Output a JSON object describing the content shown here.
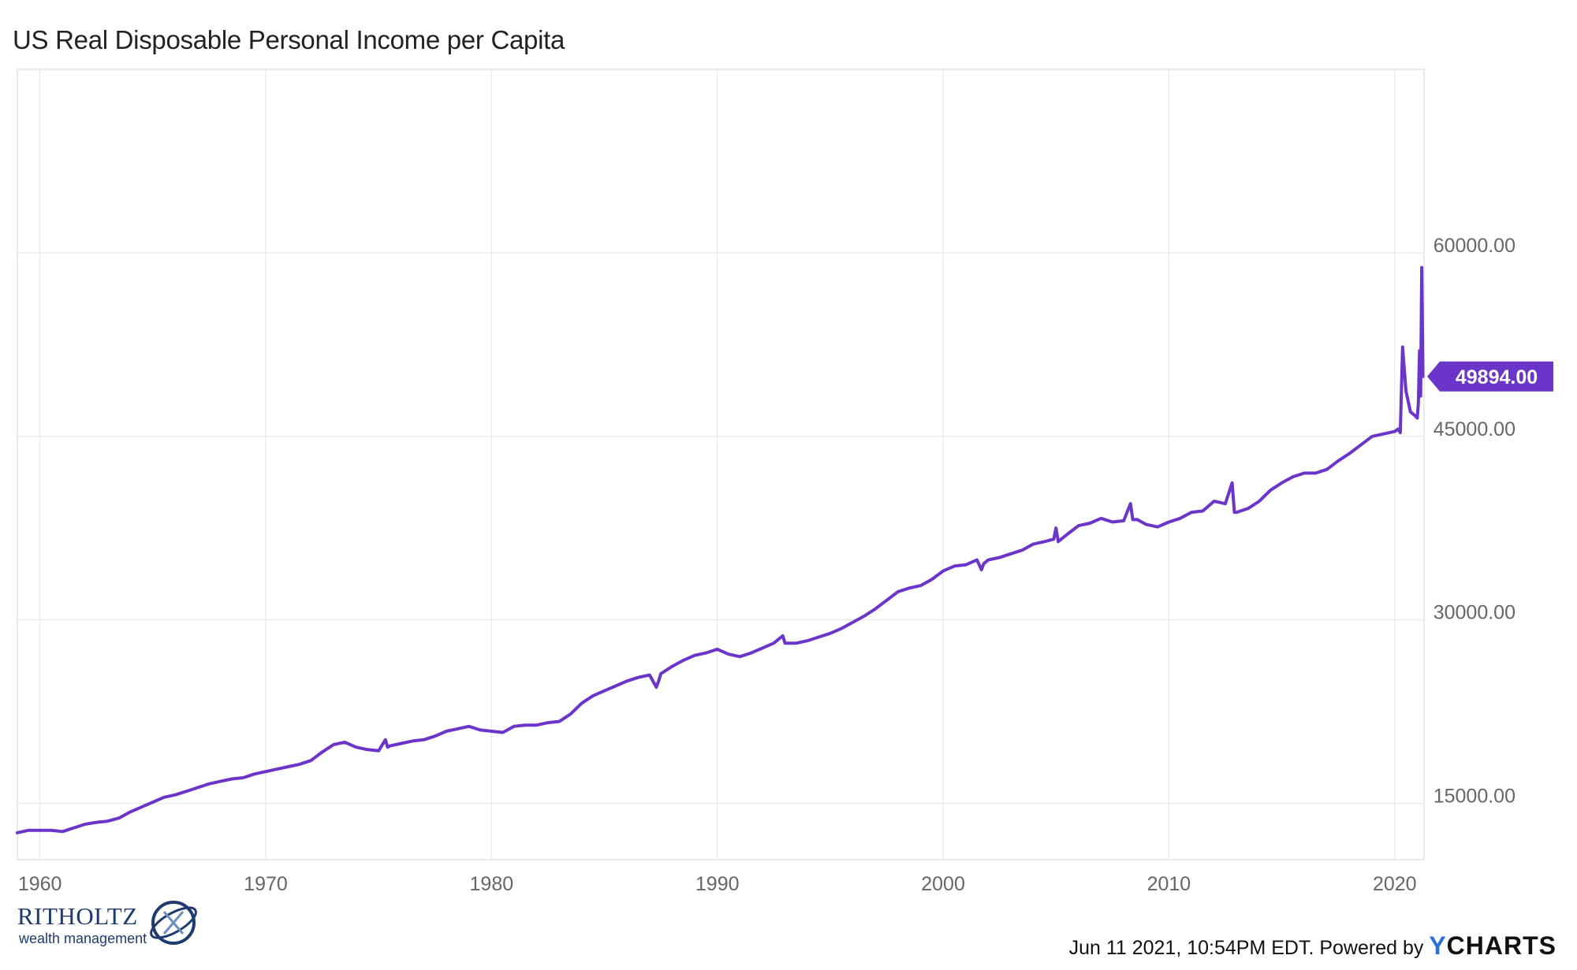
{
  "title": "US Real Disposable Personal Income per Capita",
  "footer": {
    "timestamp_text": "Jun 11 2021, 10:54PM EDT. Powered by ",
    "brand_y": "Y",
    "brand_rest": "CHARTS"
  },
  "logo": {
    "name": "RITHOLTZ",
    "subtitle": "wealth management"
  },
  "colors": {
    "series": "#6b35c9",
    "grid": "#e6e6e6",
    "axis_text": "#666666"
  },
  "chart_data": {
    "type": "line",
    "title": "US Real Disposable Personal Income per Capita",
    "xlabel": "",
    "ylabel": "",
    "xlim": [
      1959.0,
      2021.3
    ],
    "ylim": [
      10400,
      75000
    ],
    "x_ticks": [
      1960,
      1970,
      1980,
      1990,
      2000,
      2010,
      2020
    ],
    "x_tick_labels": [
      "1960",
      "1970",
      "1980",
      "1990",
      "2000",
      "2010",
      "2020"
    ],
    "y_ticks": [
      15000,
      30000,
      45000,
      60000
    ],
    "y_tick_labels": [
      "15000.00",
      "30000.00",
      "45000.00",
      "60000.00"
    ],
    "grid": true,
    "last_value_label": "49894.00",
    "series": [
      {
        "name": "",
        "x": [
          1959.0,
          1959.5,
          1960.0,
          1960.5,
          1961.0,
          1961.5,
          1962.0,
          1962.5,
          1963.0,
          1963.5,
          1964.0,
          1964.5,
          1965.0,
          1965.5,
          1966.0,
          1966.5,
          1967.0,
          1967.5,
          1968.0,
          1968.5,
          1969.0,
          1969.5,
          1970.0,
          1970.5,
          1971.0,
          1971.5,
          1972.0,
          1972.5,
          1973.0,
          1973.5,
          1974.0,
          1974.5,
          1975.0,
          1975.3,
          1975.4,
          1975.5,
          1976.0,
          1976.5,
          1977.0,
          1977.5,
          1978.0,
          1978.5,
          1979.0,
          1979.5,
          1980.0,
          1980.5,
          1981.0,
          1981.5,
          1982.0,
          1982.5,
          1983.0,
          1983.5,
          1984.0,
          1984.5,
          1985.0,
          1985.5,
          1986.0,
          1986.5,
          1987.0,
          1987.3,
          1987.4,
          1987.5,
          1988.0,
          1988.5,
          1989.0,
          1989.5,
          1990.0,
          1990.5,
          1991.0,
          1991.5,
          1992.0,
          1992.5,
          1992.9,
          1993.0,
          1993.5,
          1994.0,
          1994.5,
          1995.0,
          1995.5,
          1996.0,
          1996.5,
          1997.0,
          1997.5,
          1998.0,
          1998.5,
          1999.0,
          1999.5,
          2000.0,
          2000.5,
          2001.0,
          2001.5,
          2001.7,
          2001.8,
          2002.0,
          2002.5,
          2003.0,
          2003.5,
          2004.0,
          2004.5,
          2004.9,
          2005.0,
          2005.1,
          2005.5,
          2006.0,
          2006.5,
          2007.0,
          2007.5,
          2008.0,
          2008.3,
          2008.4,
          2008.6,
          2009.0,
          2009.5,
          2010.0,
          2010.5,
          2011.0,
          2011.5,
          2012.0,
          2012.5,
          2012.8,
          2012.9,
          2013.0,
          2013.5,
          2014.0,
          2014.5,
          2015.0,
          2015.5,
          2016.0,
          2016.5,
          2017.0,
          2017.5,
          2018.0,
          2018.5,
          2019.0,
          2019.5,
          2020.0,
          2020.15,
          2020.25,
          2020.35,
          2020.5,
          2020.7,
          2020.9,
          2021.0,
          2021.05,
          2021.1,
          2021.15,
          2021.2,
          2021.25
        ],
        "values": [
          12600,
          12800,
          12800,
          12800,
          12700,
          13000,
          13300,
          13450,
          13550,
          13800,
          14300,
          14700,
          15100,
          15500,
          15700,
          16000,
          16300,
          16600,
          16800,
          17000,
          17100,
          17400,
          17600,
          17800,
          18000,
          18200,
          18500,
          19200,
          19800,
          20000,
          19600,
          19400,
          19300,
          20200,
          19600,
          19700,
          19900,
          20100,
          20200,
          20500,
          20900,
          21100,
          21300,
          21000,
          20900,
          20800,
          21300,
          21400,
          21400,
          21600,
          21700,
          22300,
          23200,
          23800,
          24200,
          24600,
          25000,
          25300,
          25500,
          24500,
          25000,
          25600,
          26200,
          26700,
          27100,
          27300,
          27600,
          27200,
          27000,
          27300,
          27700,
          28100,
          28700,
          28100,
          28100,
          28300,
          28600,
          28900,
          29300,
          29800,
          30300,
          30900,
          31600,
          32300,
          32600,
          32800,
          33300,
          34000,
          34400,
          34500,
          34900,
          34100,
          34600,
          34900,
          35100,
          35400,
          35700,
          36200,
          36400,
          36600,
          37500,
          36400,
          37000,
          37700,
          37900,
          38300,
          38000,
          38100,
          39500,
          38200,
          38200,
          37800,
          37600,
          38000,
          38300,
          38800,
          38900,
          39700,
          39500,
          41200,
          38800,
          38800,
          39100,
          39700,
          40600,
          41200,
          41700,
          42000,
          42000,
          42300,
          43000,
          43600,
          44300,
          45000,
          45200,
          45400,
          45600,
          45300,
          52300,
          48700,
          47000,
          46700,
          46500,
          47700,
          52000,
          48300,
          58800,
          49894
        ]
      }
    ]
  }
}
